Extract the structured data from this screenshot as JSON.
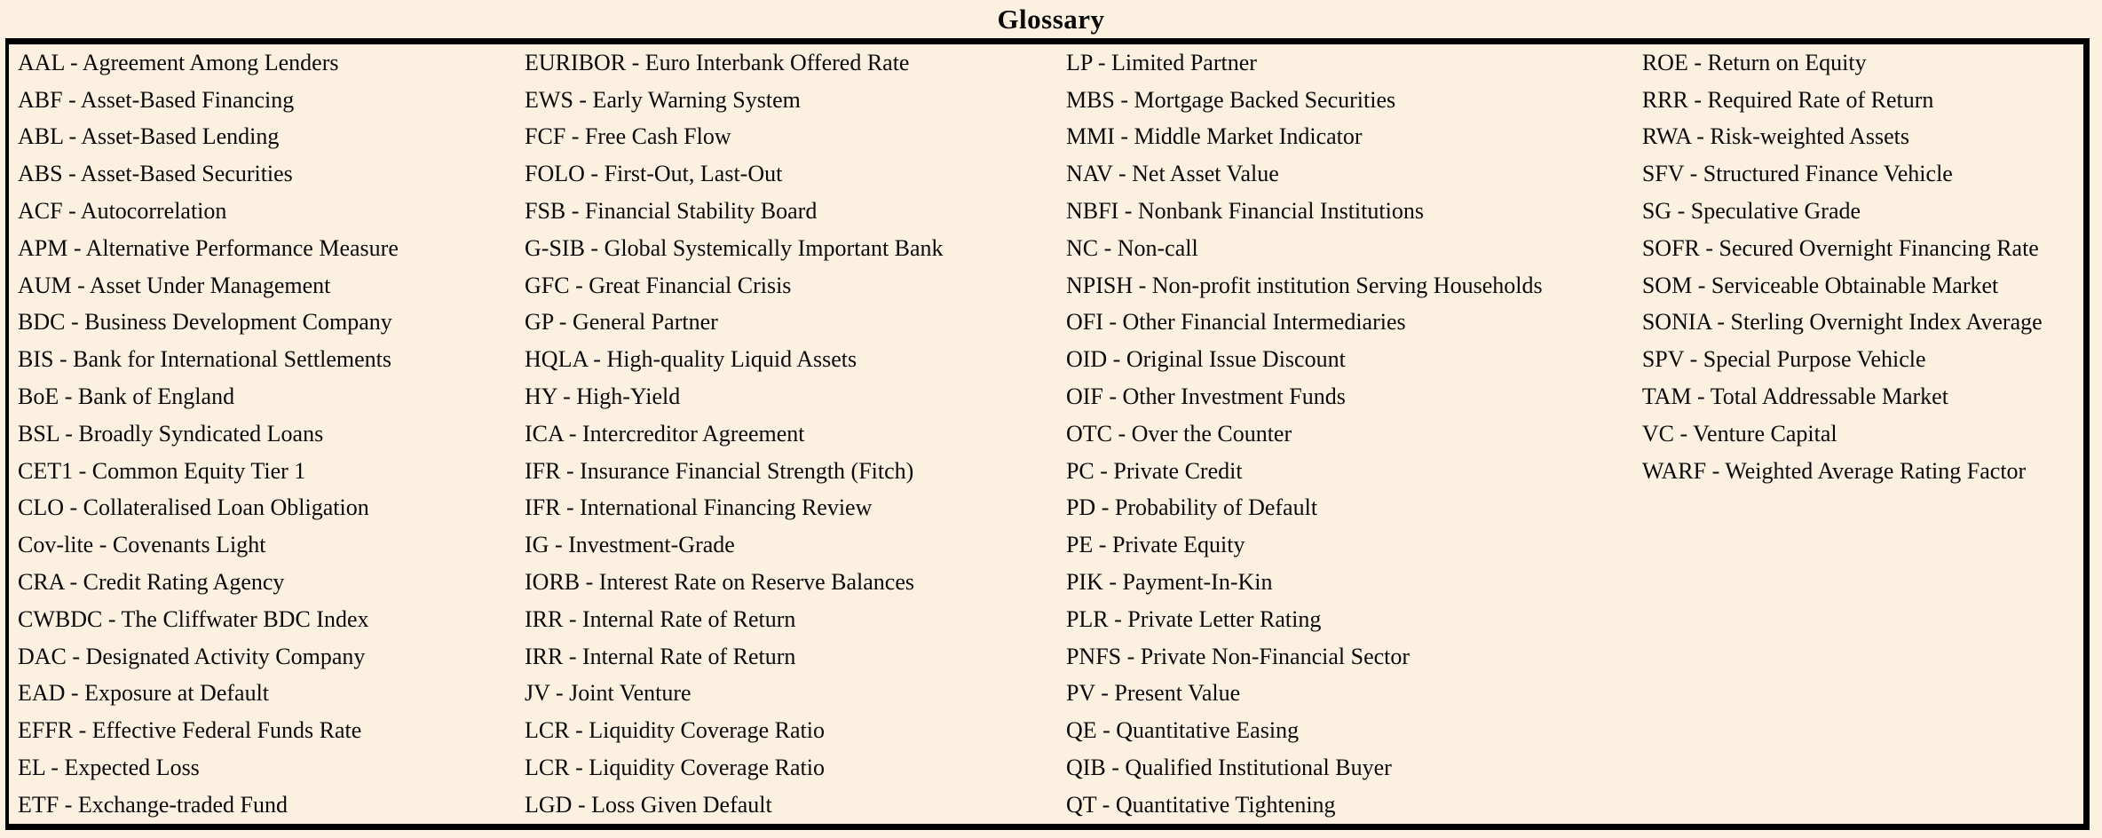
{
  "page": {
    "title": "Glossary"
  },
  "colors": {
    "background": "#fcf0e0",
    "border": "#000000",
    "text": "#0a0a0a"
  },
  "glossary": {
    "columns": [
      {
        "items": [
          "AAL - Agreement Among Lenders",
          "ABF - Asset-Based Financing",
          "ABL - Asset-Based Lending",
          "ABS - Asset-Based Securities",
          "ACF - Autocorrelation",
          "APM - Alternative Performance Measure",
          "AUM - Asset Under Management",
          "BDC - Business Development Company",
          "BIS - Bank for International Settlements",
          "BoE - Bank of England",
          "BSL - Broadly Syndicated Loans",
          "CET1 - Common Equity Tier 1",
          "CLO - Collateralised Loan Obligation",
          "Cov-lite - Covenants Light",
          "CRA - Credit Rating Agency",
          "CWBDC - The Cliffwater BDC Index",
          "DAC - Designated Activity Company",
          "EAD - Exposure at Default",
          "EFFR - Effective Federal Funds Rate",
          "EL - Expected Loss",
          "ETF - Exchange-traded Fund"
        ]
      },
      {
        "items": [
          "EURIBOR - Euro Interbank Offered Rate",
          "EWS - Early Warning System",
          "FCF - Free Cash Flow",
          "FOLO - First-Out, Last-Out",
          "FSB - Financial Stability Board",
          "G-SIB - Global Systemically Important Bank",
          "GFC - Great Financial Crisis",
          "GP - General Partner",
          "HQLA - High-quality Liquid Assets",
          "HY - High-Yield",
          "ICA - Intercreditor Agreement",
          "IFR - Insurance Financial Strength (Fitch)",
          "IFR - International Financing Review",
          "IG - Investment-Grade",
          "IORB - Interest Rate on Reserve Balances",
          "IRR - Internal Rate of Return",
          "IRR - Internal Rate of Return",
          "JV - Joint Venture",
          "LCR - Liquidity Coverage Ratio",
          "LCR - Liquidity Coverage Ratio",
          "LGD - Loss Given Default"
        ]
      },
      {
        "items": [
          "LP - Limited Partner",
          "MBS - Mortgage Backed Securities",
          "MMI - Middle Market Indicator",
          "NAV - Net Asset Value",
          "NBFI - Nonbank Financial Institutions",
          "NC - Non-call",
          "NPISH - Non-profit institution Serving Households",
          "OFI - Other Financial Intermediaries",
          "OID - Original Issue Discount",
          "OIF - Other Investment Funds",
          "OTC - Over the Counter",
          "PC - Private Credit",
          "PD - Probability of Default",
          "PE - Private Equity",
          "PIK - Payment-In-Kin",
          "PLR - Private Letter Rating",
          "PNFS - Private Non-Financial Sector",
          "PV - Present Value",
          "QE - Quantitative Easing",
          "QIB - Qualified Institutional Buyer",
          "QT - Quantitative Tightening"
        ]
      },
      {
        "items": [
          "ROE - Return on Equity",
          "RRR - Required Rate of Return",
          "RWA - Risk-weighted Assets",
          "SFV - Structured Finance Vehicle",
          "SG - Speculative Grade",
          "SOFR - Secured Overnight Financing Rate",
          "SOM - Serviceable Obtainable Market",
          "SONIA - Sterling Overnight Index Average",
          "SPV - Special Purpose Vehicle",
          "TAM - Total Addressable Market",
          "VC - Venture Capital",
          "WARF - Weighted Average Rating Factor"
        ]
      }
    ]
  }
}
